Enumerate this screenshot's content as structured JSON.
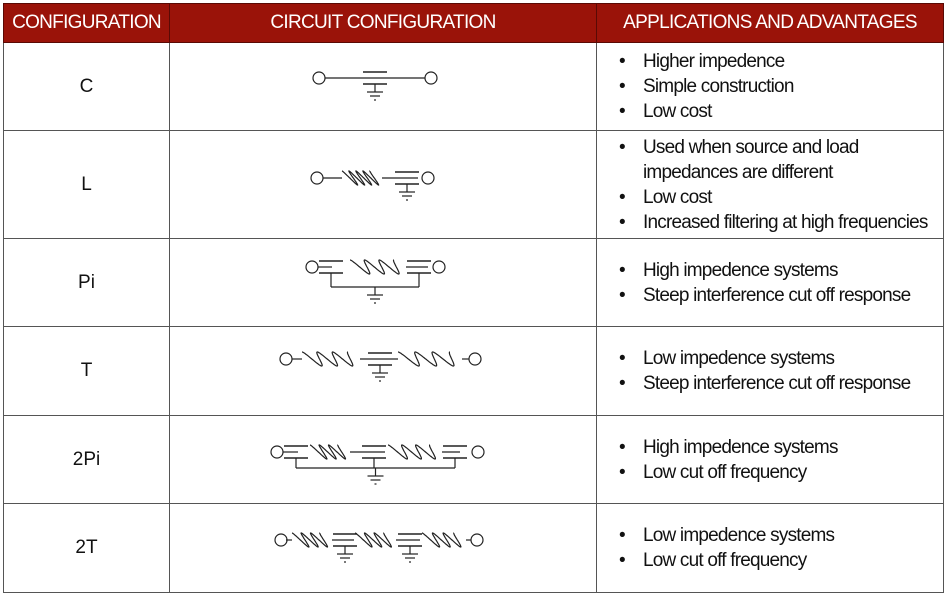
{
  "header": {
    "col1": "CONFIGURATION",
    "col2": "CIRCUIT CONFIGURATION",
    "col3": "APPLICATIONS AND ADVANTAGES",
    "background_color": "#9a1309"
  },
  "rows": [
    {
      "config": "C",
      "circuit": "c-filter-icon",
      "apps": [
        "Higher impedence",
        "Simple construction",
        "Low cost"
      ]
    },
    {
      "config": "L",
      "circuit": "l-filter-icon",
      "apps": [
        "Used when source and load impedances are different",
        "Low cost",
        "Increased filtering at high frequencies"
      ]
    },
    {
      "config": "Pi",
      "circuit": "pi-filter-icon",
      "apps": [
        "High impedence systems",
        "Steep interference cut off response"
      ]
    },
    {
      "config": "T",
      "circuit": "t-filter-icon",
      "apps": [
        "Low impedence systems",
        "Steep interference cut off response"
      ]
    },
    {
      "config": "2Pi",
      "circuit": "2pi-filter-icon",
      "apps": [
        "High impedence systems",
        "Low cut off frequency"
      ]
    },
    {
      "config": "2T",
      "circuit": "2t-filter-icon",
      "apps": [
        "Low impedence systems",
        "Low cut off frequency"
      ]
    }
  ]
}
